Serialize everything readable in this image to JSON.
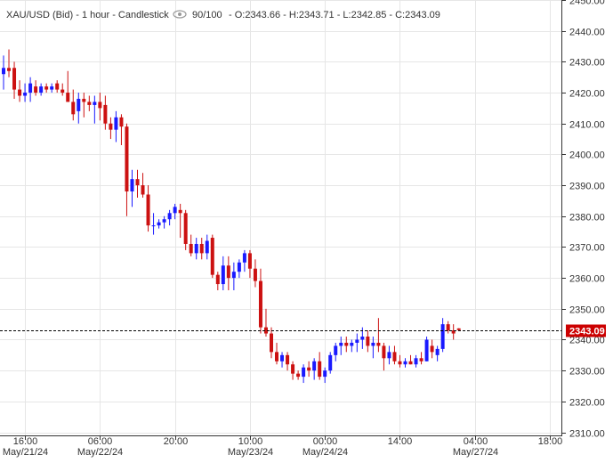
{
  "header": {
    "symbol": "XAU/USD (Bid) - 1 hour - Candlestick",
    "visibility_icon": "eye-icon",
    "visible_range": "90/100",
    "ohlc": "- O:2343.66 - H:2343.71 - L:2342.85 - C:2343.09"
  },
  "current_price": {
    "label": "2343.09",
    "value": 2343.09,
    "color": "#cc0000"
  },
  "colors": {
    "up": "#1a1aff",
    "down": "#cc1111",
    "grid": "#e6e6e6",
    "axis": "#333333"
  },
  "chart_data": {
    "type": "candlestick",
    "title": "XAU/USD (Bid) - 1 hour - Candlestick",
    "ylim": [
      2309,
      2450
    ],
    "y_ticks": [
      2310,
      2320,
      2330,
      2340,
      2350,
      2360,
      2370,
      2380,
      2390,
      2400,
      2410,
      2420,
      2430,
      2440,
      2450
    ],
    "y_tick_labels": [
      "2310.00",
      "2320.00",
      "2330.00",
      "2340.00",
      "2350.00",
      "2360.00",
      "2370.00",
      "2380.00",
      "2390.00",
      "2400.00",
      "2410.00",
      "2420.00",
      "2430.00",
      "2440.00",
      "2450.00"
    ],
    "x_ticks": [
      {
        "index": 4,
        "label": "16:00",
        "sublabel": "May/21/24"
      },
      {
        "index": 18,
        "label": "06:00",
        "sublabel": "May/22/24"
      },
      {
        "index": 32,
        "label": "20:00",
        "sublabel": ""
      },
      {
        "index": 46,
        "label": "10:00",
        "sublabel": "May/23/24"
      },
      {
        "index": 60,
        "label": "00:00",
        "sublabel": "May/24/24"
      },
      {
        "index": 74,
        "label": "14:00",
        "sublabel": ""
      },
      {
        "index": 88,
        "label": "04:00",
        "sublabel": "May/27/24"
      },
      {
        "index": 102,
        "label": "18:00",
        "sublabel": ""
      }
    ],
    "ohlc": [
      [
        2426,
        2432,
        2421,
        2428
      ],
      [
        2428,
        2434,
        2425,
        2427
      ],
      [
        2428,
        2430,
        2418,
        2421
      ],
      [
        2421,
        2424,
        2417,
        2419
      ],
      [
        2419,
        2423,
        2417,
        2420
      ],
      [
        2420,
        2425,
        2417,
        2423
      ],
      [
        2422,
        2424,
        2419,
        2420
      ],
      [
        2420,
        2423,
        2419,
        2422
      ],
      [
        2422,
        2423,
        2420,
        2421
      ],
      [
        2421,
        2423,
        2420,
        2422
      ],
      [
        2423,
        2424,
        2420,
        2421
      ],
      [
        2421,
        2423,
        2419,
        2420
      ],
      [
        2420,
        2427,
        2417,
        2417
      ],
      [
        2417,
        2421,
        2411,
        2413
      ],
      [
        2414,
        2420,
        2410,
        2418
      ],
      [
        2418,
        2420,
        2412,
        2417
      ],
      [
        2417,
        2419,
        2414,
        2416
      ],
      [
        2416,
        2419,
        2410,
        2417
      ],
      [
        2417,
        2420,
        2411,
        2415
      ],
      [
        2416,
        2419,
        2408,
        2410
      ],
      [
        2410,
        2412,
        2405,
        2408
      ],
      [
        2408,
        2414,
        2404,
        2412
      ],
      [
        2412,
        2413,
        2403,
        2409
      ],
      [
        2409,
        2410,
        2380,
        2388
      ],
      [
        2388,
        2395,
        2383,
        2392
      ],
      [
        2392,
        2395,
        2386,
        2390
      ],
      [
        2390,
        2394,
        2386,
        2387
      ],
      [
        2387,
        2390,
        2375,
        2377
      ],
      [
        2377,
        2381,
        2374,
        2377
      ],
      [
        2377,
        2379,
        2376,
        2378
      ],
      [
        2378,
        2380,
        2376,
        2379
      ],
      [
        2379,
        2382,
        2377,
        2381
      ],
      [
        2381,
        2384,
        2379,
        2383
      ],
      [
        2382,
        2384,
        2373,
        2381
      ],
      [
        2381,
        2382,
        2369,
        2371
      ],
      [
        2371,
        2374,
        2367,
        2368
      ],
      [
        2368,
        2373,
        2366,
        2371
      ],
      [
        2371,
        2373,
        2366,
        2368
      ],
      [
        2368,
        2374,
        2366,
        2372
      ],
      [
        2373,
        2374,
        2360,
        2361
      ],
      [
        2361,
        2362,
        2356,
        2358
      ],
      [
        2358,
        2367,
        2356,
        2364
      ],
      [
        2364,
        2367,
        2356,
        2360
      ],
      [
        2360,
        2365,
        2356,
        2362
      ],
      [
        2362,
        2366,
        2360,
        2365
      ],
      [
        2365,
        2369,
        2362,
        2368
      ],
      [
        2368,
        2369,
        2360,
        2363
      ],
      [
        2363,
        2366,
        2357,
        2359
      ],
      [
        2359,
        2363,
        2342,
        2344
      ],
      [
        2344,
        2350,
        2341,
        2342
      ],
      [
        2342,
        2344,
        2334,
        2336
      ],
      [
        2336,
        2339,
        2332,
        2333
      ],
      [
        2333,
        2336,
        2331,
        2335
      ],
      [
        2335,
        2336,
        2330,
        2332
      ],
      [
        2332,
        2333,
        2327,
        2329
      ],
      [
        2329,
        2330,
        2327,
        2328
      ],
      [
        2328,
        2332,
        2326,
        2331
      ],
      [
        2331,
        2333,
        2328,
        2330
      ],
      [
        2330,
        2334,
        2327,
        2333
      ],
      [
        2333,
        2336,
        2327,
        2328
      ],
      [
        2328,
        2331,
        2326,
        2330
      ],
      [
        2330,
        2336,
        2329,
        2335
      ],
      [
        2335,
        2339,
        2333,
        2338
      ],
      [
        2338,
        2341,
        2335,
        2339
      ],
      [
        2339,
        2341,
        2336,
        2338
      ],
      [
        2338,
        2340,
        2336,
        2339
      ],
      [
        2339,
        2342,
        2336,
        2340
      ],
      [
        2340,
        2344,
        2337,
        2341
      ],
      [
        2341,
        2343,
        2336,
        2338
      ],
      [
        2338,
        2341,
        2334,
        2339
      ],
      [
        2339,
        2347,
        2336,
        2338
      ],
      [
        2338,
        2339,
        2330,
        2334
      ],
      [
        2334,
        2338,
        2332,
        2336
      ],
      [
        2336,
        2338,
        2332,
        2333
      ],
      [
        2333,
        2335,
        2331,
        2332
      ],
      [
        2332,
        2334,
        2331,
        2333
      ],
      [
        2333,
        2335,
        2332,
        2332
      ],
      [
        2332,
        2335,
        2331,
        2334
      ],
      [
        2334,
        2336,
        2332,
        2333
      ],
      [
        2333,
        2341,
        2333,
        2340
      ],
      [
        2338,
        2340,
        2334,
        2336
      ],
      [
        2335,
        2338,
        2333,
        2337
      ],
      [
        2337,
        2347,
        2336,
        2345
      ],
      [
        2345,
        2346,
        2342,
        2343
      ],
      [
        2343,
        2345,
        2340,
        2342
      ],
      [
        2343.66,
        2343.71,
        2342.85,
        2343.09
      ]
    ]
  }
}
